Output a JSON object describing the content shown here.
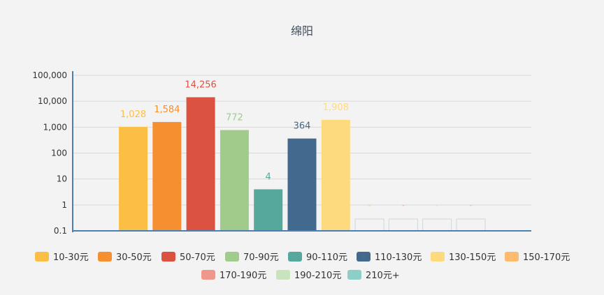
{
  "chart_data": {
    "type": "bar",
    "title": "绵阳",
    "yscale": "log",
    "ylim": [
      0.1,
      100000
    ],
    "yticks": [
      "0.1",
      "1",
      "10",
      "100",
      "1,000",
      "10,000",
      "100,000"
    ],
    "grid": true,
    "legend_position": "bottom",
    "series": [
      {
        "name": "10-30元",
        "value": 1028,
        "label": "1,028",
        "color": "#FBBF45"
      },
      {
        "name": "30-50元",
        "value": 1584,
        "label": "1,584",
        "color": "#F68F30"
      },
      {
        "name": "50-70元",
        "value": 14256,
        "label": "14,256",
        "color": "#DB5241"
      },
      {
        "name": "70-90元",
        "value": 772,
        "label": "772",
        "color": "#A0CB8A"
      },
      {
        "name": "90-110元",
        "value": 4,
        "label": "4",
        "color": "#56A89C"
      },
      {
        "name": "110-130元",
        "value": 364,
        "label": "364",
        "color": "#436A8E"
      },
      {
        "name": "130-150元",
        "value": 1908,
        "label": "1,908",
        "color": "#FEDA7E"
      },
      {
        "name": "150-170元",
        "value": 0,
        "label": "-",
        "color": "#FDBB6E"
      },
      {
        "name": "170-190元",
        "value": 0,
        "label": "-",
        "color": "#F0968A"
      },
      {
        "name": "190-210元",
        "value": 0,
        "label": "-",
        "color": "#C9E3BC"
      },
      {
        "name": "210元+",
        "value": 0,
        "label": "-",
        "color": "#8DCEC6"
      }
    ]
  }
}
